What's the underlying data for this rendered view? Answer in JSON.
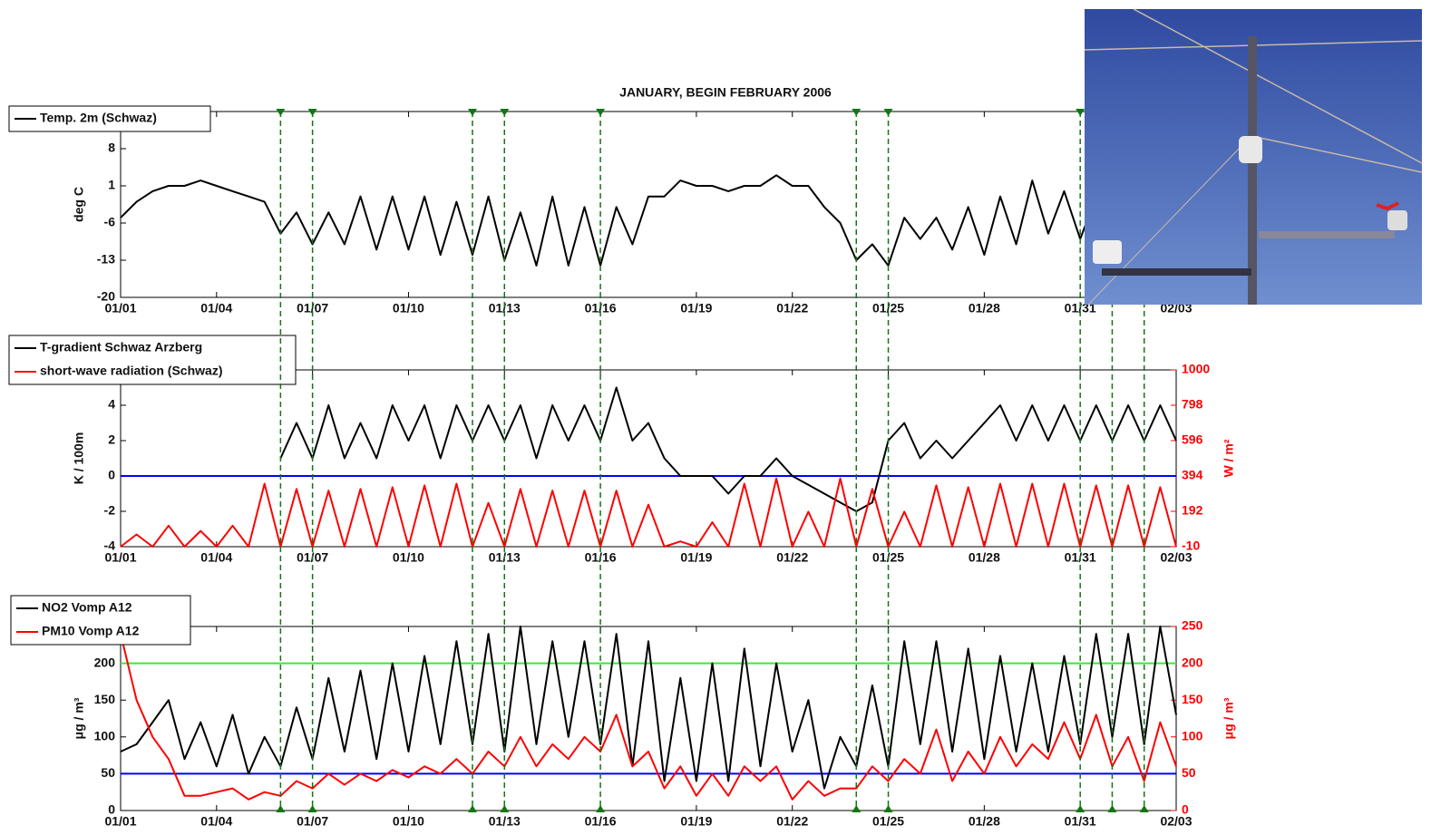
{
  "chart_data": [
    {
      "type": "line",
      "title": "JANUARY, BEGIN FEBRUARY 2006",
      "ylabel": "deg C",
      "x": [
        0,
        0.5,
        1,
        1.5,
        2,
        2.5,
        3,
        3.5,
        4,
        4.5,
        5,
        5.5,
        6,
        6.5,
        7,
        7.5,
        8,
        8.5,
        9,
        9.5,
        10,
        10.5,
        11,
        11.5,
        12,
        12.5,
        13,
        13.5,
        14,
        14.5,
        15,
        15.5,
        16,
        16.5,
        17,
        17.5,
        18,
        18.5,
        19,
        19.5,
        20,
        20.5,
        21,
        21.5,
        22,
        22.5,
        23,
        23.5,
        24,
        24.5,
        25,
        25.5,
        26,
        26.5,
        27,
        27.5,
        28,
        28.5,
        29,
        29.5,
        30,
        30.5,
        31,
        31.5,
        32,
        32.5,
        33
      ],
      "series": [
        {
          "name": "Temp. 2m (Schwaz)",
          "color": "#000000",
          "values": [
            -5,
            -2,
            0,
            1,
            1,
            2,
            1,
            0,
            -1,
            -2,
            -8,
            -4,
            -10,
            -4,
            -10,
            -1,
            -11,
            -1,
            -11,
            -1,
            -12,
            -2,
            -12,
            -1,
            -13,
            -4,
            -14,
            -1,
            -14,
            -3,
            -14,
            -3,
            -10,
            -1,
            -1,
            2,
            1,
            1,
            0,
            1,
            1,
            3,
            1,
            1,
            -3,
            -6,
            -13,
            -10,
            -14,
            -5,
            -9,
            -5,
            -11,
            -3,
            -12,
            -1,
            -10,
            2,
            -8,
            0,
            -9,
            -1,
            -7,
            0,
            -8,
            -1,
            -5
          ]
        }
      ],
      "xlim": [
        0,
        33
      ],
      "xticks": [
        {
          "value": 0,
          "label": "01/01"
        },
        {
          "value": 3,
          "label": "01/04"
        },
        {
          "value": 6,
          "label": "01/07"
        },
        {
          "value": 9,
          "label": "01/10"
        },
        {
          "value": 12,
          "label": "01/13"
        },
        {
          "value": 15,
          "label": "01/16"
        },
        {
          "value": 18,
          "label": "01/19"
        },
        {
          "value": 21,
          "label": "01/22"
        },
        {
          "value": 24,
          "label": "01/25"
        },
        {
          "value": 27,
          "label": "01/28"
        },
        {
          "value": 30,
          "label": "01/31"
        },
        {
          "value": 33,
          "label": "02/03"
        }
      ],
      "ylim": [
        -20,
        15
      ],
      "yticks": [
        -20,
        -13,
        -6,
        1,
        8
      ]
    },
    {
      "type": "line",
      "ylabel": "K / 100m",
      "y2label": "W / m²",
      "x": [
        0,
        0.5,
        1,
        1.5,
        2,
        2.5,
        3,
        3.5,
        4,
        4.5,
        5,
        5.5,
        6,
        6.5,
        7,
        7.5,
        8,
        8.5,
        9,
        9.5,
        10,
        10.5,
        11,
        11.5,
        12,
        12.5,
        13,
        13.5,
        14,
        14.5,
        15,
        15.5,
        16,
        16.5,
        17,
        17.5,
        18,
        18.5,
        19,
        19.5,
        20,
        20.5,
        21,
        21.5,
        22,
        22.5,
        23,
        23.5,
        24,
        24.5,
        25,
        25.5,
        26,
        26.5,
        27,
        27.5,
        28,
        28.5,
        29,
        29.5,
        30,
        30.5,
        31,
        31.5,
        32,
        32.5,
        33
      ],
      "series": [
        {
          "name": "T-gradient Schwaz Arzberg",
          "color": "#000000",
          "values": [
            null,
            null,
            null,
            null,
            null,
            null,
            null,
            null,
            null,
            null,
            1,
            3,
            1,
            4,
            1,
            3,
            1,
            4,
            2,
            4,
            1,
            4,
            2,
            4,
            2,
            4,
            1,
            4,
            2,
            4,
            2,
            5,
            2,
            3,
            1,
            0,
            0,
            0,
            -1,
            0,
            0,
            1,
            0,
            -0.5,
            -1,
            -1.5,
            -2,
            -1.5,
            2,
            3,
            1,
            2,
            1,
            2,
            3,
            4,
            2,
            4,
            2,
            4,
            2,
            4,
            2,
            4,
            2,
            4,
            2
          ]
        },
        {
          "name": "short-wave radiation (Schwaz)",
          "color": "#ff0000",
          "axis": "y2",
          "values": [
            -10,
            60,
            -10,
            110,
            -10,
            80,
            -10,
            110,
            -10,
            350,
            -10,
            320,
            -10,
            310,
            -10,
            320,
            -10,
            330,
            -10,
            340,
            -10,
            350,
            -10,
            240,
            -10,
            320,
            -10,
            310,
            -10,
            310,
            -10,
            310,
            -10,
            230,
            -10,
            20,
            -10,
            130,
            -10,
            350,
            -10,
            380,
            -10,
            190,
            -10,
            380,
            -10,
            320,
            -10,
            190,
            -10,
            340,
            -10,
            330,
            -10,
            350,
            -10,
            350,
            -10,
            350,
            -10,
            340,
            -10,
            340,
            -10,
            330,
            -10
          ]
        }
      ],
      "xlim": [
        0,
        33
      ],
      "xticks": [
        {
          "value": 0,
          "label": "01/01"
        },
        {
          "value": 3,
          "label": "01/04"
        },
        {
          "value": 6,
          "label": "01/07"
        },
        {
          "value": 9,
          "label": "01/10"
        },
        {
          "value": 12,
          "label": "01/13"
        },
        {
          "value": 15,
          "label": "01/16"
        },
        {
          "value": 18,
          "label": "01/19"
        },
        {
          "value": 21,
          "label": "01/22"
        },
        {
          "value": 24,
          "label": "01/25"
        },
        {
          "value": 27,
          "label": "01/28"
        },
        {
          "value": 30,
          "label": "01/31"
        },
        {
          "value": 33,
          "label": "02/03"
        }
      ],
      "ylim": [
        -4,
        6
      ],
      "yticks": [
        -4,
        -2,
        0,
        2,
        4
      ],
      "y2lim": [
        -10,
        1000
      ],
      "y2ticks": [
        -10,
        192,
        394,
        596,
        798,
        1000
      ],
      "hlines": [
        {
          "value": 0,
          "color": "#0000ff"
        }
      ]
    },
    {
      "type": "line",
      "ylabel": "μg / m³",
      "y2label": "μg / m³",
      "x": [
        0,
        0.5,
        1,
        1.5,
        2,
        2.5,
        3,
        3.5,
        4,
        4.5,
        5,
        5.5,
        6,
        6.5,
        7,
        7.5,
        8,
        8.5,
        9,
        9.5,
        10,
        10.5,
        11,
        11.5,
        12,
        12.5,
        13,
        13.5,
        14,
        14.5,
        15,
        15.5,
        16,
        16.5,
        17,
        17.5,
        18,
        18.5,
        19,
        19.5,
        20,
        20.5,
        21,
        21.5,
        22,
        22.5,
        23,
        23.5,
        24,
        24.5,
        25,
        25.5,
        26,
        26.5,
        27,
        27.5,
        28,
        28.5,
        29,
        29.5,
        30,
        30.5,
        31,
        31.5,
        32,
        32.5,
        33
      ],
      "series": [
        {
          "name": "NO2 Vomp A12",
          "color": "#000000",
          "values": [
            80,
            90,
            120,
            150,
            70,
            120,
            60,
            130,
            50,
            100,
            60,
            140,
            70,
            180,
            80,
            190,
            70,
            200,
            80,
            210,
            90,
            230,
            90,
            240,
            80,
            250,
            90,
            230,
            100,
            230,
            90,
            240,
            60,
            230,
            40,
            180,
            40,
            200,
            40,
            220,
            60,
            200,
            80,
            150,
            30,
            100,
            60,
            170,
            60,
            230,
            90,
            230,
            80,
            220,
            70,
            210,
            80,
            200,
            80,
            210,
            90,
            240,
            100,
            240,
            90,
            250,
            130
          ]
        },
        {
          "name": "PM10 Vomp A12",
          "color": "#ff0000",
          "axis": "y2",
          "values": [
            240,
            150,
            100,
            70,
            20,
            20,
            25,
            30,
            15,
            25,
            20,
            40,
            30,
            50,
            35,
            50,
            40,
            55,
            45,
            60,
            50,
            70,
            50,
            80,
            60,
            100,
            60,
            90,
            70,
            100,
            80,
            130,
            60,
            80,
            30,
            60,
            20,
            50,
            20,
            60,
            40,
            60,
            15,
            40,
            20,
            30,
            30,
            60,
            40,
            70,
            50,
            110,
            40,
            80,
            50,
            100,
            60,
            90,
            70,
            120,
            70,
            130,
            60,
            100,
            40,
            120,
            60
          ]
        }
      ],
      "xlim": [
        0,
        33
      ],
      "xticks": [
        {
          "value": 0,
          "label": "01/01"
        },
        {
          "value": 3,
          "label": "01/04"
        },
        {
          "value": 6,
          "label": "01/07"
        },
        {
          "value": 9,
          "label": "01/10"
        },
        {
          "value": 12,
          "label": "01/13"
        },
        {
          "value": 15,
          "label": "01/16"
        },
        {
          "value": 18,
          "label": "01/19"
        },
        {
          "value": 21,
          "label": "01/22"
        },
        {
          "value": 24,
          "label": "01/25"
        },
        {
          "value": 27,
          "label": "01/28"
        },
        {
          "value": 30,
          "label": "01/31"
        },
        {
          "value": 33,
          "label": "02/03"
        }
      ],
      "ylim": [
        0,
        250
      ],
      "yticks": [
        0,
        50,
        100,
        150,
        200
      ],
      "y2lim": [
        0,
        250
      ],
      "y2ticks": [
        0,
        50,
        100,
        150,
        200,
        250
      ],
      "hlines": [
        {
          "value": 200,
          "color": "#33ee33"
        },
        {
          "value": 50,
          "color": "#0000ff"
        }
      ],
      "markers": [
        5,
        6,
        11,
        12,
        15,
        23,
        24,
        30,
        31,
        32
      ],
      "marker_color": "#117711"
    }
  ]
}
